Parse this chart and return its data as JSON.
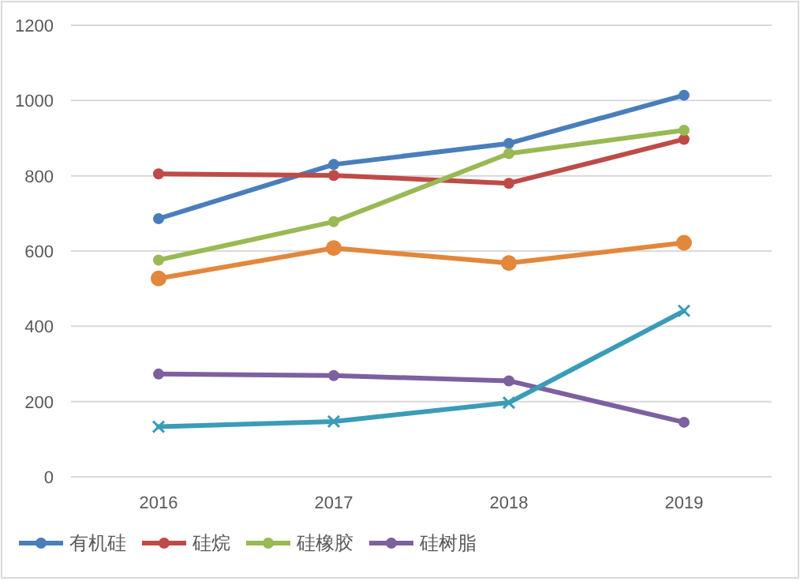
{
  "chart_data": {
    "type": "line",
    "categories": [
      "2016",
      "2017",
      "2018",
      "2019"
    ],
    "ylim": [
      0,
      1200
    ],
    "yticks": [
      0,
      200,
      400,
      600,
      800,
      1000,
      1200
    ],
    "grid": "y",
    "legend": "bottom",
    "marker": "circle",
    "line_style": "solid",
    "series": [
      {
        "name": "有机硅",
        "color": "#4a7ebb",
        "values": [
          686,
          830,
          886,
          1014
        ]
      },
      {
        "name": "硅烷",
        "color": "#be4b48",
        "values": [
          805,
          801,
          780,
          897
        ]
      },
      {
        "name": "硅橡胶",
        "color": "#98b954",
        "values": [
          576,
          678,
          859,
          921
        ]
      },
      {
        "name": "硅树脂",
        "color": "#7d60a0",
        "values": [
          273,
          269,
          255,
          145
        ]
      },
      {
        "color": "#e2873b",
        "values": [
          527,
          608,
          568,
          622
        ]
      },
      {
        "color": "#3a9cb6",
        "marker": "cross",
        "values": [
          133,
          147,
          197,
          441
        ]
      }
    ]
  }
}
